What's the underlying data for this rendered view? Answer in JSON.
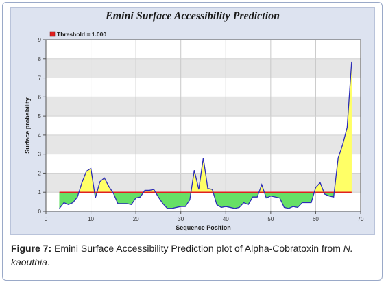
{
  "chart_data": {
    "type": "area",
    "title": "Emini Surface Accessibility Prediction",
    "xlabel": "Sequence Position",
    "ylabel": "Surface probability",
    "xlim": [
      0,
      70
    ],
    "ylim": [
      0,
      9
    ],
    "x_ticks": [
      "0",
      "10",
      "20",
      "30",
      "40",
      "50",
      "60",
      "70"
    ],
    "y_ticks": [
      "0",
      "1",
      "2",
      "3",
      "4",
      "5",
      "6",
      "7",
      "8",
      "9"
    ],
    "grid": true,
    "legend_position": "top-left",
    "threshold": {
      "label": "Threshold",
      "value_text": "= 1.000",
      "value": 1.0
    },
    "colors": {
      "line": "#2b2bb8",
      "above_fill": "#ffff66",
      "below_fill": "#66e066",
      "threshold": "#e02020",
      "band_light": "#ffffff",
      "band_dark": "#e6e6e6"
    },
    "series": [
      {
        "x": [
          3,
          4,
          5,
          6,
          7,
          8,
          9,
          10,
          11,
          12,
          13,
          14,
          15,
          16,
          17,
          18,
          19,
          20,
          21,
          22,
          23,
          24,
          25,
          26,
          27,
          28,
          29,
          30,
          31,
          32,
          33,
          34,
          35,
          36,
          37,
          38,
          39,
          40,
          41,
          42,
          43,
          44,
          45,
          46,
          47,
          48,
          49,
          50,
          51,
          52,
          53,
          54,
          55,
          56,
          57,
          58,
          59,
          60,
          61,
          62,
          63,
          64,
          65,
          66,
          67,
          68
        ],
        "y": [
          0.15,
          0.45,
          0.35,
          0.45,
          0.75,
          1.5,
          2.1,
          2.25,
          0.7,
          1.55,
          1.75,
          1.3,
          0.95,
          0.4,
          0.4,
          0.4,
          0.35,
          0.7,
          0.75,
          1.1,
          1.1,
          1.15,
          0.75,
          0.4,
          0.15,
          0.15,
          0.2,
          0.25,
          0.25,
          0.6,
          2.15,
          1.15,
          2.8,
          1.2,
          1.15,
          0.35,
          0.2,
          0.25,
          0.2,
          0.15,
          0.2,
          0.45,
          0.35,
          0.75,
          0.75,
          1.4,
          0.7,
          0.8,
          0.75,
          0.7,
          0.2,
          0.15,
          0.25,
          0.2,
          0.45,
          0.45,
          0.45,
          1.25,
          1.5,
          0.9,
          0.8,
          0.75,
          2.8,
          3.5,
          4.4,
          7.85
        ]
      }
    ]
  },
  "caption": {
    "label": "Figure 7:",
    "text": " Emini Surface Accessibility Prediction plot of Alpha-Cobratoxin from ",
    "species": "N. kaouthia",
    "end": "."
  }
}
